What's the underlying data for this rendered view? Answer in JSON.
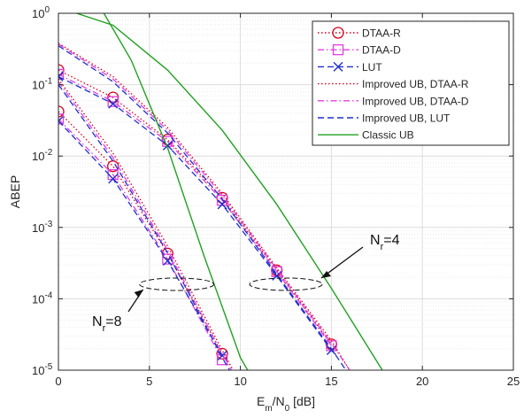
{
  "chart_data": {
    "type": "line",
    "xlabel": "E_m/N_0 [dB]",
    "xlabel_parts": {
      "main1": "E",
      "sub1": "m",
      "main2": "/N",
      "sub2": "0",
      "unit": " [dB]"
    },
    "ylabel": "ABEP",
    "xlim": [
      0,
      25
    ],
    "ylim": [
      1e-05,
      1
    ],
    "yscale": "log",
    "grid": true,
    "legend_position": "top-right",
    "x_ticks": [
      0,
      5,
      10,
      15,
      20,
      25
    ],
    "y_tick_exponents": [
      0,
      -1,
      -2,
      -3,
      -4,
      -5
    ],
    "y_tick_base": "10",
    "annotations": [
      {
        "label_main": "N",
        "label_sub": "r",
        "label_rest": "=8",
        "x": 6.5,
        "y": 0.00016
      },
      {
        "label_main": "N",
        "label_sub": "r",
        "label_rest": "=4",
        "x": 12.5,
        "y": 0.00016
      }
    ],
    "series": [
      {
        "name": "DTAA-R",
        "color": "#d6001c",
        "dash": "dotted",
        "marker": "circle",
        "data": [
          {
            "x": [
              0,
              3,
              6,
              9,
              12,
              15
            ],
            "y": [
              0.16,
              0.066,
              0.017,
              0.0026,
              0.00025,
              2.3e-05
            ]
          },
          {
            "x": [
              0,
              3,
              6,
              9
            ],
            "y": [
              0.042,
              0.0072,
              0.00043,
              1.7e-05
            ]
          }
        ]
      },
      {
        "name": "DTAA-D",
        "color": "#e040e0",
        "dash": "dashdot",
        "marker": "square",
        "data": [
          {
            "x": [
              0,
              3,
              6,
              9,
              12,
              15
            ],
            "y": [
              0.14,
              0.058,
              0.016,
              0.0024,
              0.00024,
              2.2e-05
            ]
          },
          {
            "x": [
              0,
              3,
              6,
              9
            ],
            "y": [
              0.033,
              0.0055,
              0.00036,
              1.4e-05
            ]
          }
        ]
      },
      {
        "name": "LUT",
        "color": "#1f2fd0",
        "dash": "dashed",
        "marker": "x",
        "data": [
          {
            "x": [
              0,
              3,
              6,
              9,
              12,
              15
            ],
            "y": [
              0.13,
              0.054,
              0.014,
              0.0021,
              0.00021,
              1.9e-05
            ]
          },
          {
            "x": [
              0,
              3,
              6,
              9
            ],
            "y": [
              0.031,
              0.0048,
              0.00034,
              1.6e-05
            ]
          }
        ]
      },
      {
        "name": "Improved UB, DTAA-R",
        "color": "#d6001c",
        "dash": "dotted",
        "marker": "none",
        "data": [
          {
            "x": [
              0,
              3,
              6,
              9,
              12,
              15,
              16
            ],
            "y": [
              0.38,
              0.13,
              0.025,
              0.003,
              0.00027,
              2.6e-05,
              1e-05
            ]
          },
          {
            "x": [
              0,
              3,
              6,
              9,
              9.6
            ],
            "y": [
              0.12,
              0.011,
              0.00055,
              1.9e-05,
              1e-05
            ]
          }
        ]
      },
      {
        "name": "Improved UB, DTAA-D",
        "color": "#e040e0",
        "dash": "dashdot",
        "marker": "none",
        "data": [
          {
            "x": [
              0,
              3,
              6,
              9,
              12,
              15,
              16
            ],
            "y": [
              0.37,
              0.12,
              0.023,
              0.0028,
              0.00026,
              2.4e-05,
              1e-05
            ]
          },
          {
            "x": [
              0,
              3,
              6,
              9,
              9.5
            ],
            "y": [
              0.11,
              0.0095,
              0.00048,
              1.7e-05,
              1e-05
            ]
          }
        ]
      },
      {
        "name": "Improved UB, LUT",
        "color": "#1f2fd0",
        "dash": "dashed",
        "marker": "none",
        "data": [
          {
            "x": [
              0,
              3,
              6,
              9,
              12,
              15,
              15.8
            ],
            "y": [
              0.35,
              0.11,
              0.021,
              0.0025,
              0.00022,
              2e-05,
              1e-05
            ]
          },
          {
            "x": [
              0,
              3,
              6,
              9,
              9.4
            ],
            "y": [
              0.1,
              0.0085,
              0.00044,
              1.5e-05,
              1e-05
            ]
          }
        ]
      },
      {
        "name": "Classic UB",
        "color": "#22a022",
        "dash": "solid",
        "marker": "none",
        "data": [
          {
            "x": [
              1,
              3,
              6,
              9,
              12,
              15,
              17.8
            ],
            "y": [
              1,
              0.68,
              0.16,
              0.023,
              0.0021,
              0.00014,
              1e-05
            ]
          },
          {
            "x": [
              2.5,
              4,
              6,
              8,
              10,
              10.4
            ],
            "y": [
              1,
              0.22,
              0.013,
              0.0004,
              1.5e-05,
              1e-05
            ]
          }
        ]
      }
    ]
  }
}
